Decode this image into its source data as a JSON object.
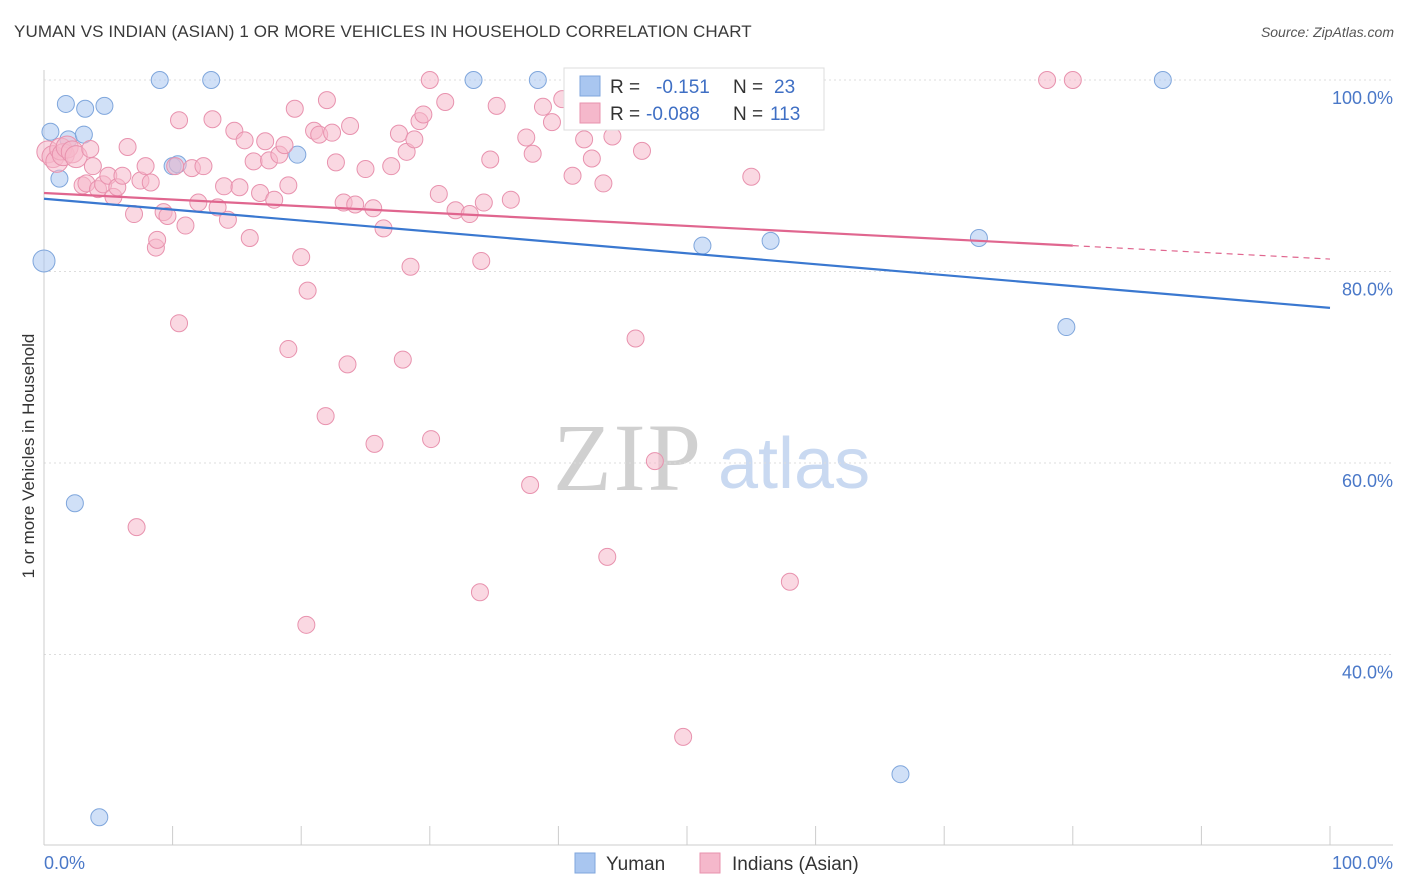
{
  "header": {
    "title": "YUMAN VS INDIAN (ASIAN) 1 OR MORE VEHICLES IN HOUSEHOLD CORRELATION CHART",
    "source": "Source: ZipAtlas.com"
  },
  "watermark": {
    "zip": "ZIP",
    "atlas": "atlas"
  },
  "legend": {
    "rows": [
      {
        "r_label": "R =",
        "r_value": "-0.151",
        "n_label": "N =",
        "n_value": "23",
        "color": "#a9c6f0"
      },
      {
        "r_label": "R =",
        "r_value": "-0.088",
        "n_label": "N =",
        "n_value": "113",
        "color": "#f5b8cb"
      }
    ]
  },
  "bottom_legend": [
    {
      "label": "Yuman",
      "color": "#a9c6f0"
    },
    {
      "label": "Indians (Asian)",
      "color": "#f5b8cb"
    }
  ],
  "chart_data": {
    "type": "scatter",
    "title": "YUMAN VS INDIAN (ASIAN) 1 OR MORE VEHICLES IN HOUSEHOLD CORRELATION CHART",
    "xlabel": "",
    "ylabel": "1 or more Vehicles in Household",
    "xlim": [
      0,
      100
    ],
    "ylim": [
      20,
      102
    ],
    "x_tick_labels": [
      "0.0%",
      "100.0%"
    ],
    "y_ticks": [
      40,
      60,
      80,
      100
    ],
    "y_tick_labels": [
      "40.0%",
      "60.0%",
      "80.0%",
      "100.0%"
    ],
    "grid": true,
    "series": [
      {
        "name": "Yuman",
        "color": "#a9c6f0",
        "stroke": "#7fa6dc",
        "trend": {
          "x": [
            0,
            100
          ],
          "y": [
            87.6,
            76.2
          ],
          "color": "#3a78d0"
        },
        "points": [
          [
            0.0,
            81.1
          ],
          [
            0.5,
            94.6
          ],
          [
            1.2,
            89.7
          ],
          [
            1.7,
            97.5
          ],
          [
            1.9,
            93.8
          ],
          [
            3.1,
            94.3
          ],
          [
            3.2,
            97.0
          ],
          [
            4.7,
            97.3
          ],
          [
            9.0,
            100.0
          ],
          [
            10.0,
            91.0
          ],
          [
            10.4,
            91.2
          ],
          [
            13.0,
            100.0
          ],
          [
            19.7,
            92.2
          ],
          [
            33.4,
            100.0
          ],
          [
            38.4,
            100.0
          ],
          [
            51.2,
            82.7
          ],
          [
            56.5,
            83.2
          ],
          [
            72.7,
            83.5
          ],
          [
            87.0,
            100.0
          ],
          [
            79.5,
            74.2
          ],
          [
            2.4,
            55.8
          ],
          [
            4.3,
            23.0
          ],
          [
            66.6,
            27.5
          ]
        ]
      },
      {
        "name": "Indians (Asian)",
        "color": "#f5b8cb",
        "stroke": "#e892ae",
        "trend": {
          "x": [
            0,
            80,
            100
          ],
          "y": [
            88.2,
            82.7,
            81.3
          ],
          "color": "#e0668f"
        },
        "points": [
          [
            0.3,
            92.5
          ],
          [
            0.7,
            92.0
          ],
          [
            1.0,
            91.5
          ],
          [
            1.3,
            92.8
          ],
          [
            1.5,
            92.2
          ],
          [
            1.8,
            93.0
          ],
          [
            2.2,
            92.5
          ],
          [
            2.5,
            92.0
          ],
          [
            3.0,
            89.0
          ],
          [
            3.3,
            89.2
          ],
          [
            3.6,
            92.8
          ],
          [
            3.8,
            91.0
          ],
          [
            4.2,
            88.6
          ],
          [
            4.6,
            89.1
          ],
          [
            5.0,
            90.0
          ],
          [
            5.4,
            87.8
          ],
          [
            5.7,
            88.8
          ],
          [
            6.1,
            90.0
          ],
          [
            6.5,
            93.0
          ],
          [
            7.0,
            86.0
          ],
          [
            7.5,
            89.5
          ],
          [
            7.9,
            91.0
          ],
          [
            8.3,
            89.3
          ],
          [
            8.7,
            82.5
          ],
          [
            8.8,
            83.3
          ],
          [
            9.3,
            86.2
          ],
          [
            9.6,
            85.8
          ],
          [
            10.2,
            91.0
          ],
          [
            10.5,
            95.8
          ],
          [
            11.0,
            84.8
          ],
          [
            11.5,
            90.8
          ],
          [
            12.0,
            87.2
          ],
          [
            12.4,
            91.0
          ],
          [
            13.1,
            95.9
          ],
          [
            13.5,
            86.7
          ],
          [
            14.0,
            88.9
          ],
          [
            14.3,
            85.4
          ],
          [
            14.8,
            94.7
          ],
          [
            15.2,
            88.8
          ],
          [
            15.6,
            93.7
          ],
          [
            16.0,
            83.5
          ],
          [
            16.3,
            91.5
          ],
          [
            16.8,
            88.2
          ],
          [
            17.2,
            93.6
          ],
          [
            17.5,
            91.6
          ],
          [
            17.9,
            87.5
          ],
          [
            18.3,
            92.2
          ],
          [
            18.7,
            93.2
          ],
          [
            19.0,
            89.0
          ],
          [
            19.5,
            97.0
          ],
          [
            20.0,
            81.5
          ],
          [
            20.5,
            78.0
          ],
          [
            21.0,
            94.7
          ],
          [
            21.4,
            94.3
          ],
          [
            22.0,
            97.9
          ],
          [
            22.4,
            94.5
          ],
          [
            22.7,
            91.4
          ],
          [
            23.3,
            87.2
          ],
          [
            23.8,
            95.2
          ],
          [
            24.2,
            87.0
          ],
          [
            25.0,
            90.7
          ],
          [
            25.6,
            86.6
          ],
          [
            26.4,
            84.5
          ],
          [
            27.0,
            91.0
          ],
          [
            27.6,
            94.4
          ],
          [
            28.2,
            92.5
          ],
          [
            28.8,
            93.8
          ],
          [
            29.2,
            95.7
          ],
          [
            29.5,
            96.4
          ],
          [
            30.0,
            100.0
          ],
          [
            30.7,
            88.1
          ],
          [
            31.2,
            97.7
          ],
          [
            32.0,
            86.4
          ],
          [
            33.1,
            86.0
          ],
          [
            34.2,
            87.2
          ],
          [
            34.7,
            91.7
          ],
          [
            35.2,
            97.3
          ],
          [
            36.3,
            87.5
          ],
          [
            37.5,
            94.0
          ],
          [
            38.0,
            92.3
          ],
          [
            38.8,
            97.2
          ],
          [
            39.5,
            95.6
          ],
          [
            40.3,
            98.0
          ],
          [
            41.1,
            90.0
          ],
          [
            42.0,
            93.8
          ],
          [
            42.6,
            91.8
          ],
          [
            43.5,
            89.2
          ],
          [
            44.2,
            94.1
          ],
          [
            45.0,
            100.0
          ],
          [
            46.5,
            92.6
          ],
          [
            55.0,
            89.9
          ],
          [
            78.0,
            100.0
          ],
          [
            80.0,
            100.0
          ],
          [
            46.0,
            73.0
          ],
          [
            7.2,
            53.3
          ],
          [
            10.5,
            74.6
          ],
          [
            19.0,
            71.9
          ],
          [
            21.9,
            64.9
          ],
          [
            23.6,
            70.3
          ],
          [
            25.7,
            62.0
          ],
          [
            27.9,
            70.8
          ],
          [
            28.5,
            80.5
          ],
          [
            30.1,
            62.5
          ],
          [
            34.0,
            81.1
          ],
          [
            37.8,
            57.7
          ],
          [
            43.8,
            50.2
          ],
          [
            47.5,
            60.2
          ],
          [
            33.9,
            46.5
          ],
          [
            20.4,
            43.1
          ],
          [
            58.0,
            47.6
          ],
          [
            49.7,
            31.4
          ]
        ]
      }
    ]
  }
}
